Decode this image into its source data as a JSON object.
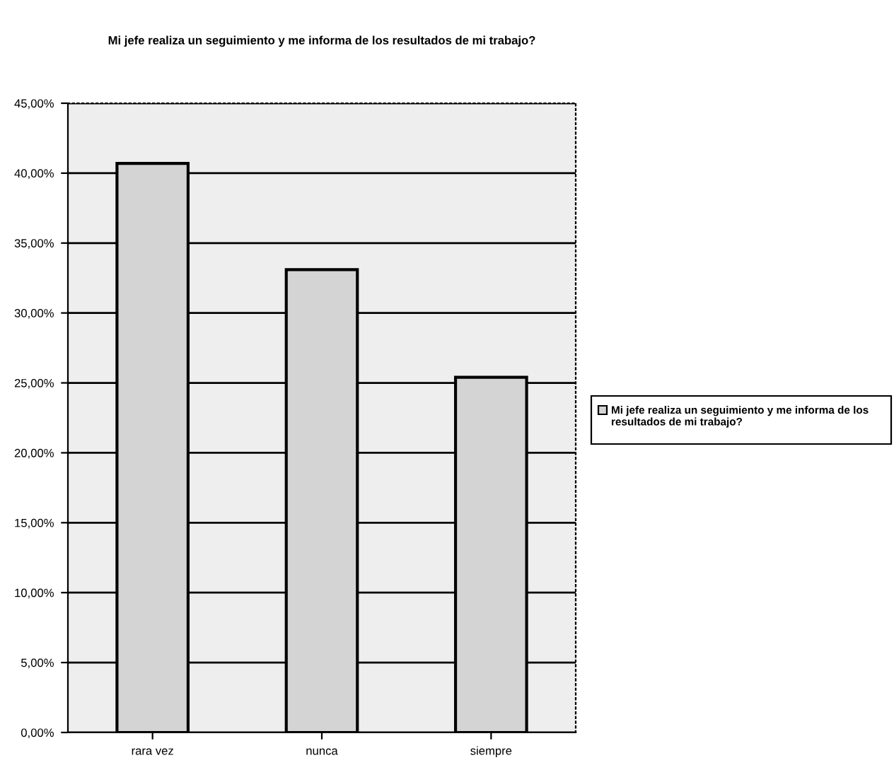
{
  "chart_data": {
    "type": "bar",
    "title": "Mi jefe realiza un seguimiento y me informa de los resultados de mi trabajo?",
    "categories": [
      "rara vez",
      "nunca",
      "siempre"
    ],
    "series": [
      {
        "name": "Mi jefe realiza un seguimiento y me informa de los resultados de mi trabajo?",
        "color": "#d4d4d4",
        "values": [
          40.7,
          33.1,
          25.4
        ]
      }
    ],
    "ylim": [
      0,
      45
    ],
    "yticks": [
      {
        "value": 0,
        "label": "0,00%"
      },
      {
        "value": 5,
        "label": "5,00%"
      },
      {
        "value": 10,
        "label": "10,00%"
      },
      {
        "value": 15,
        "label": "15,00%"
      },
      {
        "value": 20,
        "label": "20,00%"
      },
      {
        "value": 25,
        "label": "25,00%"
      },
      {
        "value": 30,
        "label": "30,00%"
      },
      {
        "value": 35,
        "label": "35,00%"
      },
      {
        "value": 40,
        "label": "40,00%"
      },
      {
        "value": 45,
        "label": "45,00%"
      }
    ],
    "grid": "y",
    "legend": "right"
  }
}
